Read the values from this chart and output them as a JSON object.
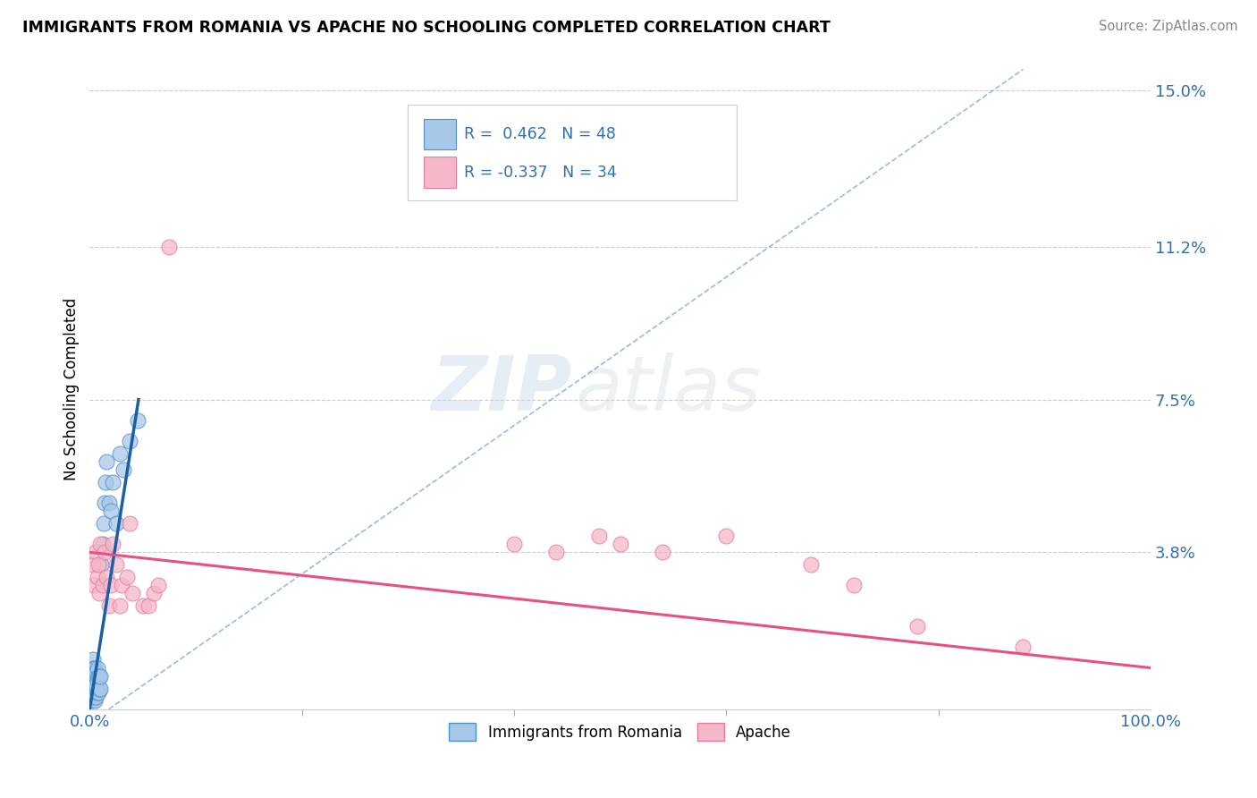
{
  "title": "IMMIGRANTS FROM ROMANIA VS APACHE NO SCHOOLING COMPLETED CORRELATION CHART",
  "source": "Source: ZipAtlas.com",
  "ylabel": "No Schooling Completed",
  "legend1_r": "0.462",
  "legend1_n": "48",
  "legend2_r": "-0.337",
  "legend2_n": "34",
  "blue_color": "#a8c8e8",
  "pink_color": "#f4b8c8",
  "blue_line_color": "#1a5fa8",
  "pink_line_color": "#e85080",
  "blue_edge_color": "#5090c8",
  "pink_edge_color": "#e878a0",
  "watermark_zip": "ZIP",
  "watermark_atlas": "atlas",
  "xlim": [
    0.0,
    1.0
  ],
  "ylim": [
    0.0,
    0.155
  ],
  "ytick_vals": [
    0.038,
    0.075,
    0.112,
    0.15
  ],
  "ytick_labels": [
    "3.8%",
    "7.5%",
    "11.2%",
    "15.0%"
  ],
  "blue_scatter_x": [
    0.001,
    0.001,
    0.001,
    0.001,
    0.002,
    0.002,
    0.002,
    0.002,
    0.002,
    0.003,
    0.003,
    0.003,
    0.003,
    0.003,
    0.004,
    0.004,
    0.004,
    0.004,
    0.005,
    0.005,
    0.005,
    0.005,
    0.006,
    0.006,
    0.006,
    0.007,
    0.007,
    0.007,
    0.008,
    0.008,
    0.009,
    0.009,
    0.01,
    0.01,
    0.011,
    0.012,
    0.013,
    0.014,
    0.015,
    0.016,
    0.018,
    0.02,
    0.022,
    0.025,
    0.028,
    0.032,
    0.038,
    0.045
  ],
  "blue_scatter_y": [
    0.003,
    0.005,
    0.007,
    0.009,
    0.002,
    0.004,
    0.006,
    0.008,
    0.01,
    0.003,
    0.005,
    0.007,
    0.009,
    0.012,
    0.003,
    0.005,
    0.008,
    0.01,
    0.002,
    0.004,
    0.007,
    0.01,
    0.003,
    0.006,
    0.009,
    0.004,
    0.007,
    0.01,
    0.004,
    0.008,
    0.005,
    0.008,
    0.005,
    0.008,
    0.035,
    0.04,
    0.045,
    0.05,
    0.055,
    0.06,
    0.05,
    0.048,
    0.055,
    0.045,
    0.062,
    0.058,
    0.065,
    0.07
  ],
  "pink_scatter_x": [
    0.003,
    0.004,
    0.006,
    0.007,
    0.008,
    0.009,
    0.01,
    0.012,
    0.014,
    0.016,
    0.018,
    0.02,
    0.022,
    0.025,
    0.028,
    0.03,
    0.035,
    0.038,
    0.04,
    0.05,
    0.055,
    0.06,
    0.065,
    0.075,
    0.4,
    0.44,
    0.48,
    0.5,
    0.54,
    0.6,
    0.68,
    0.72,
    0.78,
    0.88
  ],
  "pink_scatter_y": [
    0.035,
    0.03,
    0.038,
    0.032,
    0.035,
    0.028,
    0.04,
    0.03,
    0.038,
    0.032,
    0.025,
    0.03,
    0.04,
    0.035,
    0.025,
    0.03,
    0.032,
    0.045,
    0.028,
    0.025,
    0.025,
    0.028,
    0.03,
    0.112,
    0.04,
    0.038,
    0.042,
    0.04,
    0.038,
    0.042,
    0.035,
    0.03,
    0.02,
    0.015
  ],
  "blue_trendline_x": [
    0.0,
    0.046
  ],
  "blue_trendline_y": [
    0.0,
    0.075
  ],
  "blue_dashline_x": [
    0.018,
    0.88
  ],
  "blue_dashline_y": [
    0.0,
    0.155
  ],
  "pink_trendline_x": [
    0.0,
    1.0
  ],
  "pink_trendline_y": [
    0.038,
    0.01
  ]
}
